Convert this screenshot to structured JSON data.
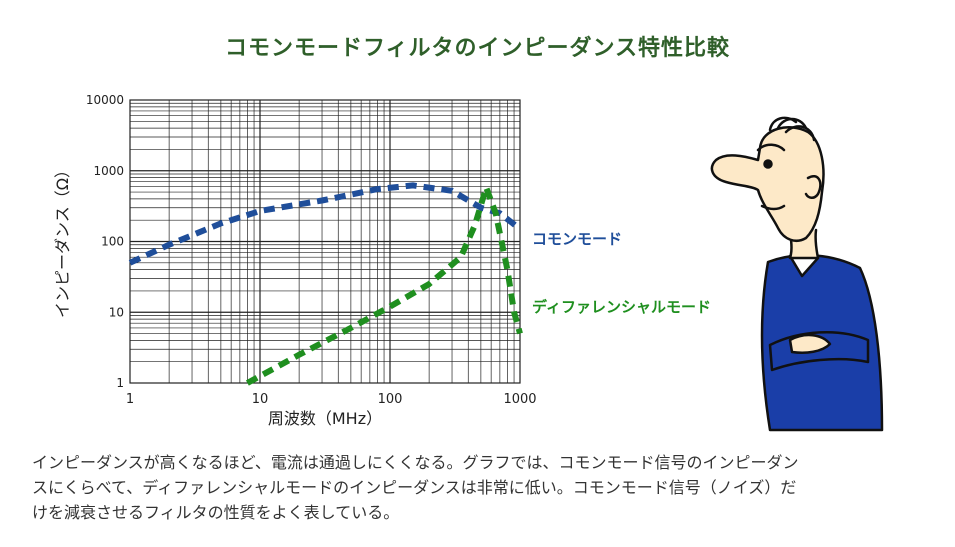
{
  "title": "コモンモードフィルタのインピーダンス特性比較",
  "colors": {
    "title": "#2f5f2a",
    "common_mode": "#1f4e9a",
    "differential_mode": "#1f8f1f",
    "grid": "#222222",
    "text": "#333333",
    "shirt": "#1a3ea8"
  },
  "chart_data": {
    "type": "line",
    "xlabel": "周波数（MHz）",
    "ylabel": "インピーダンス（Ω）",
    "x_scale": "log",
    "y_scale": "log",
    "xlim": [
      1,
      1000
    ],
    "ylim": [
      1,
      10000
    ],
    "x_ticks": [
      {
        "value": 1,
        "label": "1"
      },
      {
        "value": 10,
        "label": "10"
      },
      {
        "value": 100,
        "label": "100"
      },
      {
        "value": 1000,
        "label": "1000"
      }
    ],
    "y_ticks": [
      {
        "value": 1,
        "label": "1"
      },
      {
        "value": 10,
        "label": "10"
      },
      {
        "value": 100,
        "label": "100"
      },
      {
        "value": 1000,
        "label": "1000"
      },
      {
        "value": 10000,
        "label": "10000"
      }
    ],
    "grid": true,
    "series": [
      {
        "name": "コモンモード",
        "key": "common",
        "style": "dashed",
        "points": [
          [
            1,
            50
          ],
          [
            2,
            90
          ],
          [
            5,
            180
          ],
          [
            10,
            270
          ],
          [
            30,
            380
          ],
          [
            80,
            550
          ],
          [
            150,
            620
          ],
          [
            300,
            520
          ],
          [
            500,
            300
          ],
          [
            700,
            250
          ],
          [
            1000,
            150
          ]
        ]
      },
      {
        "name": "ディファレンシャルモード",
        "key": "diff",
        "style": "dashed",
        "points": [
          [
            8,
            1
          ],
          [
            20,
            2.5
          ],
          [
            50,
            6
          ],
          [
            100,
            12
          ],
          [
            200,
            25
          ],
          [
            350,
            60
          ],
          [
            450,
            170
          ],
          [
            550,
            580
          ],
          [
            650,
            250
          ],
          [
            800,
            40
          ],
          [
            900,
            10
          ],
          [
            1000,
            5
          ]
        ]
      }
    ]
  },
  "caption": {
    "lines": [
      "インピーダンスが高くなるほど、電流は通過しにくくなる。グラフでは、コモンモード信号のインピーダン",
      "スにくらべて、ディファレンシャルモードのインピーダンスは非常に低い。コモンモード信号（ノイズ）だ",
      "けを減衰させるフィルタの性質をよく表している。"
    ]
  },
  "illustration": "thinking-man-arms-crossed"
}
